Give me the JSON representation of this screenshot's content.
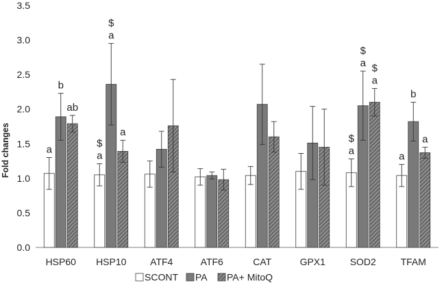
{
  "chart_data": {
    "type": "bar",
    "ylabel": "Fold changes",
    "xlabel": "",
    "title": "",
    "ylim": [
      0,
      3.5
    ],
    "yticks": [
      "0.0",
      "0.5",
      "1.0",
      "1.5",
      "2.0",
      "2.5",
      "3.0",
      "3.5"
    ],
    "categories": [
      "HSP60",
      "HSP10",
      "ATF4",
      "ATF6",
      "CAT",
      "GPX1",
      "SOD2",
      "TFAM"
    ],
    "series": [
      {
        "name": "SCONT",
        "style": "open",
        "values": [
          1.07,
          1.05,
          1.06,
          1.02,
          1.04,
          1.1,
          1.08,
          1.04
        ],
        "errors": [
          0.23,
          0.16,
          0.19,
          0.12,
          0.13,
          0.26,
          0.2,
          0.16
        ],
        "annotations": [
          [
            "a"
          ],
          [
            "$",
            "a"
          ],
          [],
          [],
          [],
          [],
          [
            "$",
            "a"
          ],
          [
            "a"
          ]
        ]
      },
      {
        "name": "PA",
        "style": "solid",
        "values": [
          1.89,
          2.36,
          1.42,
          1.04,
          2.07,
          1.51,
          2.05,
          1.82
        ],
        "errors": [
          0.34,
          0.59,
          0.26,
          0.05,
          0.58,
          0.53,
          0.5,
          0.28
        ],
        "annotations": [
          [
            "b"
          ],
          [
            "$",
            "a"
          ],
          [],
          [],
          [],
          [],
          [
            "$",
            "a"
          ],
          [
            "b"
          ]
        ]
      },
      {
        "name": "PA+ MitoQ",
        "style": "hatched",
        "values": [
          1.79,
          1.39,
          1.76,
          0.98,
          1.6,
          1.45,
          2.1,
          1.37
        ],
        "errors": [
          0.12,
          0.16,
          0.67,
          0.15,
          0.22,
          0.55,
          0.2,
          0.08
        ],
        "annotations": [
          [
            "ab"
          ],
          [
            "a"
          ],
          [],
          [],
          [],
          [],
          [
            "$",
            "a"
          ],
          [
            "a"
          ]
        ]
      }
    ],
    "legend": {
      "placement": "bottom",
      "entries": [
        "SCONT",
        "PA",
        "PA+ MitoQ"
      ]
    },
    "colors": {
      "SCONT": "#ffffff",
      "PA": "#7a7a7a",
      "PA+ MitoQ": "#6a6a6a",
      "edge": "#3a3a3a",
      "axis": "#7f7f7f",
      "text": "#222222"
    }
  }
}
